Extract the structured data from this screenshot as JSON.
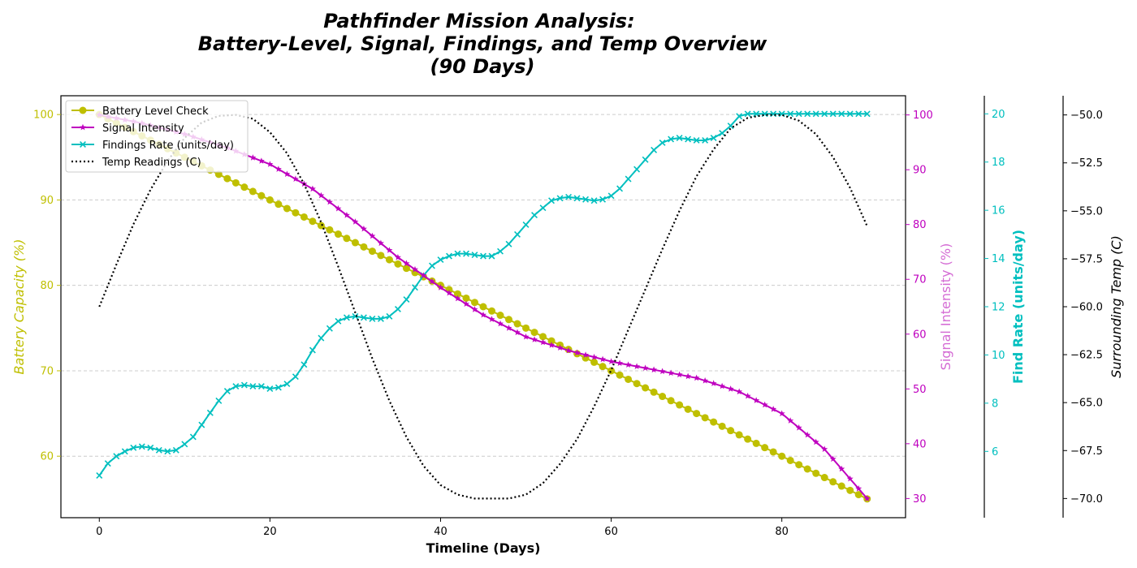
{
  "colors": {
    "title": "#800080",
    "battery": "#bfbf00",
    "signal": "#bf00bf",
    "signal_label": "#d46bd4",
    "findings": "#00bfbf",
    "temp": "#000000",
    "grid": "#cccccc"
  },
  "chart_data": {
    "type": "line",
    "title": [
      "Pathfinder Mission Analysis:",
      "Battery-Level, Signal, Findings, and Temp Overview",
      "(90 Days)"
    ],
    "xlabel": "Timeline (Days)",
    "xlim": [
      -4.5,
      94.5
    ],
    "xticks": [
      0,
      20,
      40,
      60,
      80
    ],
    "grid": "horizontal dashed",
    "legend_position": "top-left",
    "axes": {
      "battery": {
        "label": "Battery Capacity (%)",
        "side": "left",
        "lim": [
          52.8,
          102.2
        ],
        "ticks": [
          60,
          70,
          80,
          90,
          100
        ]
      },
      "signal": {
        "label": "Signal Intensity (%)",
        "side": "right",
        "lim": [
          26.5,
          103.5
        ],
        "ticks": [
          30,
          40,
          50,
          60,
          70,
          80,
          90,
          100
        ]
      },
      "findings": {
        "label": "Find Rate (units/day)",
        "side": "right",
        "lim": [
          3.25,
          20.75
        ],
        "ticks": [
          6,
          8,
          10,
          12,
          14,
          16,
          18,
          20
        ]
      },
      "temp": {
        "label": "Surrounding Temp (C)",
        "side": "right",
        "lim": [
          -71,
          -49
        ],
        "ticks": [
          -70.0,
          -67.5,
          -65.0,
          -62.5,
          -60.0,
          -57.5,
          -55.0,
          -52.5,
          -50.0
        ]
      }
    },
    "series": [
      {
        "name": "Battery Level Check",
        "axis": "battery",
        "marker": "circle",
        "x_start": 0,
        "x_step": 1,
        "values": [
          100.0,
          99.5,
          99.0,
          98.5,
          98.0,
          97.5,
          97.0,
          96.5,
          96.0,
          95.5,
          95.0,
          94.5,
          94.0,
          93.5,
          93.0,
          92.5,
          92.0,
          91.5,
          91.0,
          90.5,
          90.0,
          89.5,
          89.0,
          88.5,
          88.0,
          87.5,
          87.0,
          86.5,
          86.0,
          85.5,
          85.0,
          84.5,
          84.0,
          83.5,
          83.0,
          82.5,
          82.0,
          81.5,
          81.0,
          80.5,
          80.0,
          79.5,
          79.0,
          78.5,
          78.0,
          77.5,
          77.0,
          76.5,
          76.0,
          75.5,
          75.0,
          74.5,
          74.0,
          73.5,
          73.0,
          72.5,
          72.0,
          71.5,
          71.0,
          70.5,
          70.0,
          69.5,
          69.0,
          68.5,
          68.0,
          67.5,
          67.0,
          66.5,
          66.0,
          65.5,
          65.0,
          64.5,
          64.0,
          63.5,
          63.0,
          62.5,
          62.0,
          61.5,
          61.0,
          60.5,
          60.0,
          59.5,
          59.0,
          58.5,
          58.0,
          57.5,
          57.0,
          56.5,
          56.0,
          55.5,
          55.0
        ]
      },
      {
        "name": "Signal Intensity",
        "axis": "signal",
        "marker": "star",
        "x": [
          0,
          5,
          10,
          15,
          20,
          25,
          30,
          35,
          40,
          45,
          50,
          55,
          60,
          65,
          70,
          75,
          80,
          85,
          90
        ],
        "values": [
          100,
          98.5,
          96.5,
          94,
          91,
          86.5,
          80.5,
          74,
          68.5,
          63.5,
          59.5,
          57,
          55,
          53.5,
          52,
          49.5,
          45.5,
          39,
          30
        ]
      },
      {
        "name": "Findings Rate (units/day)",
        "axis": "findings",
        "marker": "x",
        "x_start": 0,
        "x_step": 1,
        "values": [
          5.0,
          5.5,
          5.8,
          6.0,
          6.15,
          6.2,
          6.15,
          6.05,
          6.0,
          6.05,
          6.3,
          6.6,
          7.1,
          7.6,
          8.1,
          8.5,
          8.7,
          8.75,
          8.7,
          8.7,
          8.6,
          8.65,
          8.8,
          9.1,
          9.6,
          10.2,
          10.7,
          11.1,
          11.4,
          11.55,
          11.6,
          11.55,
          11.5,
          11.5,
          11.6,
          11.9,
          12.3,
          12.8,
          13.3,
          13.7,
          13.95,
          14.1,
          14.2,
          14.2,
          14.15,
          14.1,
          14.1,
          14.3,
          14.6,
          15.0,
          15.4,
          15.8,
          16.1,
          16.4,
          16.5,
          16.55,
          16.5,
          16.45,
          16.4,
          16.45,
          16.6,
          16.9,
          17.3,
          17.7,
          18.1,
          18.5,
          18.8,
          18.95,
          19.0,
          18.95,
          18.9,
          18.9,
          19.0,
          19.2,
          19.5,
          19.9,
          20.0,
          20.0,
          20.0,
          20.0,
          20.0,
          20.0,
          20.0,
          20.0,
          20.0,
          20.0,
          20.0,
          20.0,
          20.0,
          20.0,
          20.0
        ]
      },
      {
        "name": "Temp Readings (C)",
        "axis": "temp",
        "marker": "none",
        "x": [
          0,
          2,
          4,
          6,
          8,
          10,
          12,
          14,
          16,
          18,
          20,
          22,
          24,
          26,
          28,
          30,
          32,
          34,
          36,
          38,
          40,
          42,
          44,
          46,
          47,
          48,
          50,
          52,
          54,
          56,
          58,
          60,
          62,
          64,
          66,
          68,
          70,
          72,
          74,
          76,
          78,
          80,
          82,
          84,
          86,
          88,
          90
        ],
        "values": [
          -60.0,
          -57.8,
          -55.7,
          -53.9,
          -52.4,
          -51.2,
          -50.4,
          -50.05,
          -50.0,
          -50.2,
          -50.9,
          -52.0,
          -53.6,
          -55.6,
          -57.9,
          -60.3,
          -62.7,
          -64.9,
          -66.8,
          -68.3,
          -69.3,
          -69.8,
          -70.0,
          -70.0,
          -70.0,
          -70.0,
          -69.8,
          -69.2,
          -68.2,
          -66.9,
          -65.2,
          -63.3,
          -61.2,
          -59.1,
          -57.0,
          -55.0,
          -53.2,
          -51.8,
          -50.7,
          -50.15,
          -50.0,
          -50.0,
          -50.3,
          -51.0,
          -52.2,
          -53.8,
          -55.8
        ]
      }
    ]
  }
}
